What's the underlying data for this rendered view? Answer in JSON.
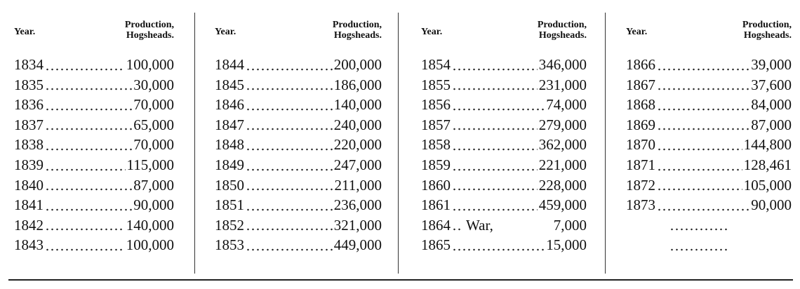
{
  "table": {
    "groups": [
      {
        "header": {
          "year": "Year.",
          "production": [
            "Production,",
            "Hogsheads."
          ]
        },
        "rows": [
          {
            "year": "1834",
            "value": "100,000"
          },
          {
            "year": "1835",
            "value": "30,000"
          },
          {
            "year": "1836",
            "value": "70,000"
          },
          {
            "year": "1837",
            "value": "65,000"
          },
          {
            "year": "1838",
            "value": "70,000"
          },
          {
            "year": "1839",
            "value": "115,000"
          },
          {
            "year": "1840",
            "value": "87,000"
          },
          {
            "year": "1841",
            "value": "90,000"
          },
          {
            "year": "1842",
            "value": "140,000"
          },
          {
            "year": "1843",
            "value": "100,000"
          }
        ]
      },
      {
        "header": {
          "year": "Year.",
          "production": [
            "Production,",
            "Hogsheads."
          ]
        },
        "rows": [
          {
            "year": "1844",
            "value": "200,000"
          },
          {
            "year": "1845",
            "value": "186,000"
          },
          {
            "year": "1846",
            "value": "140,000"
          },
          {
            "year": "1847",
            "value": "240,000"
          },
          {
            "year": "1848",
            "value": "220,000"
          },
          {
            "year": "1849",
            "value": "247,000"
          },
          {
            "year": "1850",
            "value": "211,000"
          },
          {
            "year": "1851",
            "value": "236,000"
          },
          {
            "year": "1852",
            "value": "321,000"
          },
          {
            "year": "1853",
            "value": "449,000"
          }
        ]
      },
      {
        "header": {
          "year": "Year.",
          "production": [
            "Production,",
            "Hogsheads."
          ]
        },
        "rows": [
          {
            "year": "1854",
            "value": "346,000"
          },
          {
            "year": "1855",
            "value": "231,000"
          },
          {
            "year": "1856",
            "value": "74,000"
          },
          {
            "year": "1857",
            "value": "279,000"
          },
          {
            "year": "1858",
            "value": "362,000"
          },
          {
            "year": "1859",
            "value": "221,000"
          },
          {
            "year": "1860",
            "value": "228,000"
          },
          {
            "year": "1861",
            "value": "459,000"
          },
          {
            "year": "1864",
            "note": "War,",
            "value": "7,000"
          },
          {
            "year": "1865",
            "value": "15,000"
          }
        ]
      },
      {
        "header": {
          "year": "Year.",
          "production": [
            "Production,",
            "Hogsheads."
          ]
        },
        "rows": [
          {
            "year": "1866",
            "value": "39,000"
          },
          {
            "year": "1867",
            "value": "37,600"
          },
          {
            "year": "1868",
            "value": "84,000"
          },
          {
            "year": "1869",
            "value": "87,000"
          },
          {
            "year": "1870",
            "value": "144,800"
          },
          {
            "year": "1871",
            "value": "128,461"
          },
          {
            "year": "1872",
            "value": "105,000"
          },
          {
            "year": "1873",
            "value": "90,000"
          }
        ]
      }
    ]
  }
}
